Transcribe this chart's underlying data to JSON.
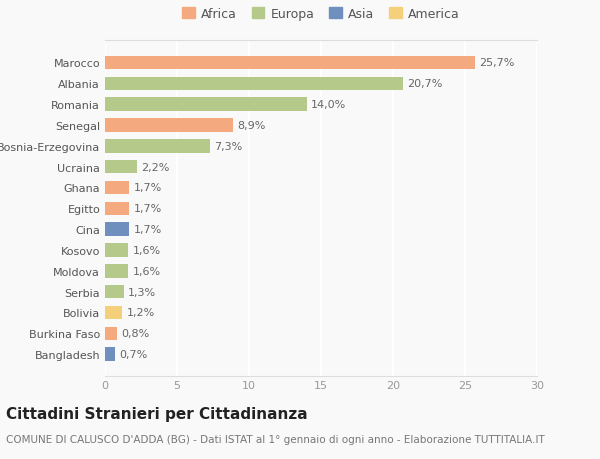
{
  "categories": [
    "Marocco",
    "Albania",
    "Romania",
    "Senegal",
    "Bosnia-Erzegovina",
    "Ucraina",
    "Ghana",
    "Egitto",
    "Cina",
    "Kosovo",
    "Moldova",
    "Serbia",
    "Bolivia",
    "Burkina Faso",
    "Bangladesh"
  ],
  "values": [
    25.7,
    20.7,
    14.0,
    8.9,
    7.3,
    2.2,
    1.7,
    1.7,
    1.7,
    1.6,
    1.6,
    1.3,
    1.2,
    0.8,
    0.7
  ],
  "labels": [
    "25,7%",
    "20,7%",
    "14,0%",
    "8,9%",
    "7,3%",
    "2,2%",
    "1,7%",
    "1,7%",
    "1,7%",
    "1,6%",
    "1,6%",
    "1,3%",
    "1,2%",
    "0,8%",
    "0,7%"
  ],
  "colors": [
    "#F4A97F",
    "#B5C98A",
    "#B5C98A",
    "#F4A97F",
    "#B5C98A",
    "#B5C98A",
    "#F4A97F",
    "#F4A97F",
    "#6F8FBF",
    "#B5C98A",
    "#B5C98A",
    "#B5C98A",
    "#F5D07A",
    "#F4A97F",
    "#6F8FBF"
  ],
  "legend_labels": [
    "Africa",
    "Europa",
    "Asia",
    "America"
  ],
  "legend_colors": [
    "#F4A97F",
    "#B5C98A",
    "#6F8FBF",
    "#F5D07A"
  ],
  "title": "Cittadini Stranieri per Cittadinanza",
  "subtitle": "COMUNE DI CALUSCO D'ADDA (BG) - Dati ISTAT al 1° gennaio di ogni anno - Elaborazione TUTTITALIA.IT",
  "xlim": [
    0,
    30
  ],
  "xticks": [
    0,
    5,
    10,
    15,
    20,
    25,
    30
  ],
  "bg_color": "#f9f9f9",
  "bar_height": 0.65,
  "title_fontsize": 11,
  "subtitle_fontsize": 7.5,
  "label_fontsize": 8,
  "tick_fontsize": 8,
  "legend_fontsize": 9
}
